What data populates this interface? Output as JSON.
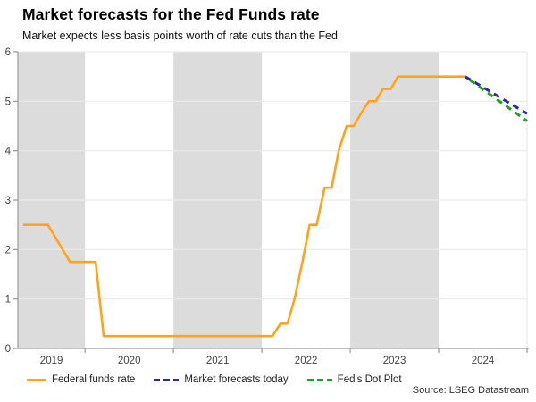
{
  "header": {
    "title": "Market forecasts for the Fed Funds rate",
    "subtitle": "Market expects less basis points worth of rate cuts than the Fed"
  },
  "footer": {
    "source": "Source: LSEG Datastream"
  },
  "chart_data": {
    "type": "line",
    "title": "Market forecasts for the Fed Funds rate",
    "subtitle": "Market expects less basis points worth of rate cuts than the Fed",
    "xlabel": "",
    "ylabel": "",
    "x_domain": [
      2019.24,
      2025.0
    ],
    "y_domain": [
      0,
      6
    ],
    "y_ticks": [
      0,
      1,
      2,
      3,
      4,
      5,
      6
    ],
    "grid_values": [
      1,
      2,
      3,
      4,
      5,
      6
    ],
    "x_boundary_ticks": [
      2020,
      2021,
      2022,
      2023,
      2024,
      2025
    ],
    "x_year_labels": [
      "2019",
      "2020",
      "2021",
      "2022",
      "2023",
      "2024"
    ],
    "shaded_year_bands": [
      [
        2019.24,
        2020
      ],
      [
        2021,
        2022
      ],
      [
        2023,
        2024
      ]
    ],
    "band_color": "#DCDCDC",
    "grid_color": "#EAEAEA",
    "axis_color": "#999999",
    "tick_label_color": "#444444",
    "legend_position": "bottom",
    "series": [
      {
        "name": "Federal funds rate",
        "color": "#FFA319",
        "style": "solid",
        "points": [
          [
            2019.3,
            2.5
          ],
          [
            2019.58,
            2.5
          ],
          [
            2019.83,
            1.75
          ],
          [
            2020.12,
            1.75
          ],
          [
            2020.21,
            0.25
          ],
          [
            2022.12,
            0.25
          ],
          [
            2022.21,
            0.5
          ],
          [
            2022.29,
            0.5
          ],
          [
            2022.37,
            1.0
          ],
          [
            2022.46,
            1.75
          ],
          [
            2022.54,
            2.5
          ],
          [
            2022.62,
            2.5
          ],
          [
            2022.71,
            3.25
          ],
          [
            2022.79,
            3.25
          ],
          [
            2022.87,
            4.0
          ],
          [
            2022.96,
            4.5
          ],
          [
            2023.04,
            4.5
          ],
          [
            2023.12,
            4.75
          ],
          [
            2023.21,
            5.0
          ],
          [
            2023.29,
            5.0
          ],
          [
            2023.37,
            5.25
          ],
          [
            2023.46,
            5.25
          ],
          [
            2023.54,
            5.5
          ],
          [
            2024.3,
            5.5
          ]
        ]
      },
      {
        "name": "Market forecasts today",
        "color": "#2B2B9E",
        "style": "dashed",
        "dash_phase": 0,
        "points": [
          [
            2024.3,
            5.5
          ],
          [
            2025.0,
            4.75
          ]
        ]
      },
      {
        "name": "Fed's Dot Plot",
        "color": "#22A022",
        "style": "dashed",
        "dash_phase": 6.25,
        "points": [
          [
            2024.3,
            5.5
          ],
          [
            2025.0,
            4.6
          ]
        ]
      }
    ],
    "source": "Source: LSEG Datastream"
  }
}
